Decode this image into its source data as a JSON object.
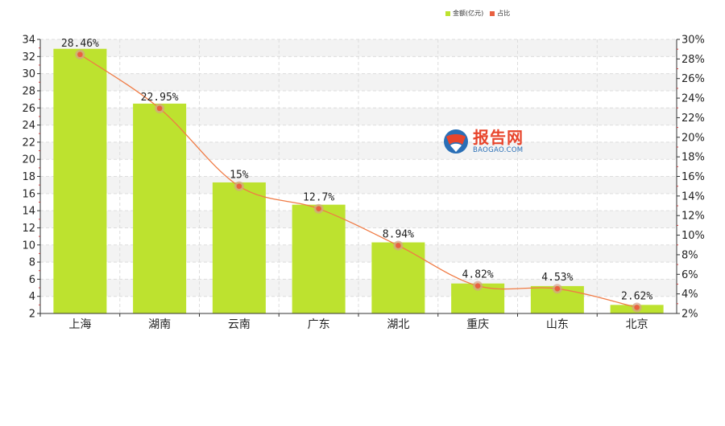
{
  "legend": {
    "bar_label": "金额(亿元)",
    "line_label": "占比"
  },
  "logo": {
    "name_cn": "报告网",
    "name_en": "BAOGAO.COM"
  },
  "colors": {
    "bar": "#bde22f",
    "line": "#f07b45",
    "marker": "#e86040",
    "marker_halo": "#d6a08a",
    "grid": "#dddddd",
    "band": "#f3f3f3"
  },
  "chart_data": {
    "type": "bar",
    "categories": [
      "上海",
      "湖南",
      "云南",
      "广东",
      "湖北",
      "重庆",
      "山东",
      "北京"
    ],
    "series": [
      {
        "name": "金额(亿元)",
        "type": "bar",
        "axis": "left",
        "values": [
          32.9,
          26.5,
          17.3,
          14.7,
          10.3,
          5.5,
          5.2,
          3.0
        ]
      },
      {
        "name": "占比",
        "type": "line",
        "axis": "right",
        "values": [
          28.46,
          22.95,
          15,
          12.7,
          8.94,
          4.82,
          4.53,
          2.62
        ],
        "labels": [
          "28.46%",
          "22.95%",
          "15%",
          "12.7%",
          "8.94%",
          "4.82%",
          "4.53%",
          "2.62%"
        ]
      }
    ],
    "y_left": {
      "min": 2,
      "max": 34,
      "step": 2,
      "ticks": [
        "2",
        "4",
        "6",
        "8",
        "10",
        "12",
        "14",
        "16",
        "18",
        "20",
        "22",
        "24",
        "26",
        "28",
        "30",
        "32",
        "34"
      ]
    },
    "y_right": {
      "min": 2,
      "max": 30,
      "step": 2,
      "ticks": [
        "2%",
        "4%",
        "6%",
        "8%",
        "10%",
        "12%",
        "14%",
        "16%",
        "18%",
        "20%",
        "22%",
        "24%",
        "26%",
        "28%",
        "30%"
      ]
    },
    "grid": true,
    "legend_position": "top-right"
  }
}
